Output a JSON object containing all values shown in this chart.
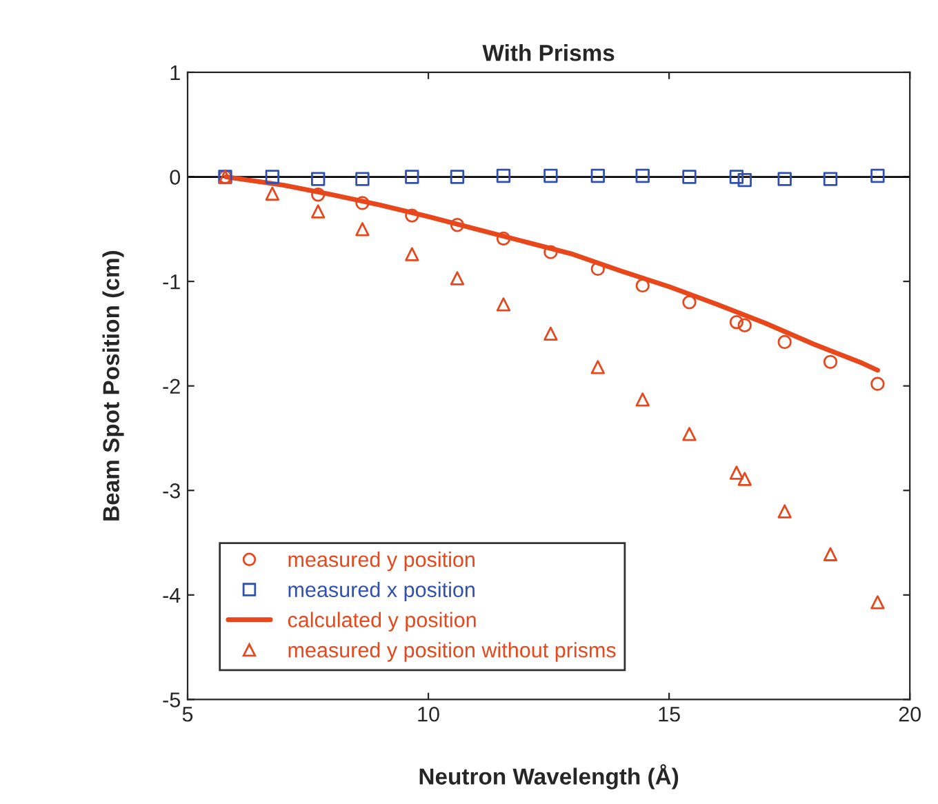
{
  "chart_data": {
    "type": "scatter",
    "title": "With Prisms",
    "xlabel": "Neutron Wavelength (Å)",
    "ylabel": "Beam Spot Position (cm)",
    "xlim": [
      5,
      20
    ],
    "xticks": [
      5,
      10,
      15,
      20
    ],
    "ylim": [
      -5,
      1
    ],
    "yticks": [
      -5,
      -4,
      -3,
      -2,
      -1,
      0,
      1
    ],
    "grid": false,
    "legend": "bottom left",
    "ref_lines": [
      {
        "axis": "y",
        "value": 0,
        "color": "#000000",
        "line_style": "solid"
      }
    ],
    "series": [
      {
        "name": "measured y position",
        "marker": "circle",
        "color": "#e8471c",
        "x": [
          5.78,
          7.71,
          8.63,
          9.66,
          10.6,
          11.56,
          12.54,
          13.52,
          14.45,
          15.42,
          16.4,
          16.57,
          17.4,
          18.35,
          19.33
        ],
        "values": [
          0,
          -0.17,
          -0.25,
          -0.37,
          -0.46,
          -0.59,
          -0.72,
          -0.88,
          -1.04,
          -1.2,
          -1.39,
          -1.42,
          -1.58,
          -1.77,
          -1.98
        ]
      },
      {
        "name": "measured x position",
        "marker": "square",
        "color": "#3050b0",
        "x": [
          5.78,
          6.76,
          7.71,
          8.63,
          9.66,
          10.6,
          11.56,
          12.54,
          13.52,
          14.45,
          15.42,
          16.4,
          16.57,
          17.4,
          18.35,
          19.33
        ],
        "values": [
          0,
          0,
          -0.02,
          -0.02,
          0,
          0,
          0.01,
          0.01,
          0.01,
          0.01,
          0,
          0,
          -0.03,
          -0.02,
          -0.02,
          0.01
        ]
      },
      {
        "name": "calculated y position",
        "type": "line",
        "marker": "none",
        "line_style": "solid",
        "color": "#e8471c",
        "x": [
          5.8,
          7,
          8,
          9,
          10,
          11,
          12,
          13,
          14,
          15,
          16,
          17,
          18,
          19,
          19.33
        ],
        "values": [
          0,
          -0.08,
          -0.17,
          -0.27,
          -0.38,
          -0.5,
          -0.62,
          -0.74,
          -0.9,
          -1.05,
          -1.22,
          -1.4,
          -1.6,
          -1.78,
          -1.85
        ]
      },
      {
        "name": "measured y position without prisms",
        "marker": "triangle",
        "color": "#e8471c",
        "x": [
          5.78,
          6.76,
          7.71,
          8.63,
          9.66,
          10.6,
          11.56,
          12.54,
          13.52,
          14.45,
          15.42,
          16.4,
          16.57,
          17.4,
          18.35,
          19.33
        ],
        "values": [
          0,
          -0.16,
          -0.33,
          -0.5,
          -0.74,
          -0.97,
          -1.22,
          -1.5,
          -1.82,
          -2.13,
          -2.46,
          -2.83,
          -2.89,
          -3.2,
          -3.61,
          -4.07
        ]
      }
    ]
  }
}
